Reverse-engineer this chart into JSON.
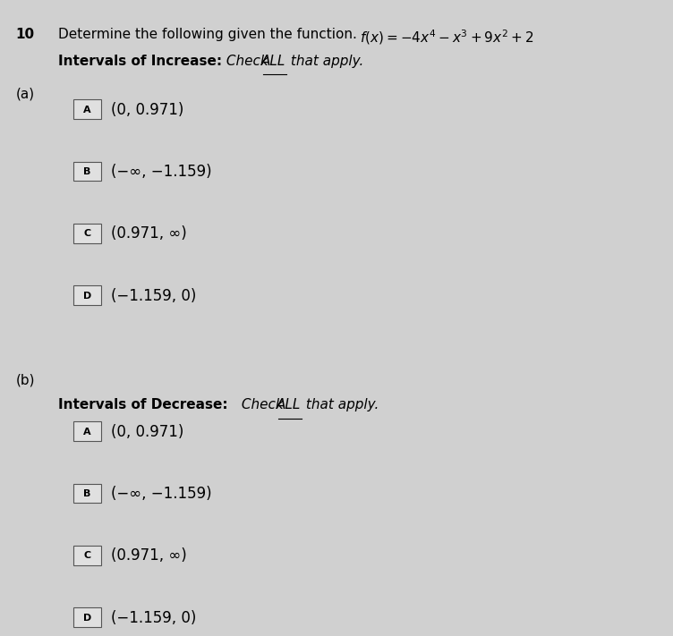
{
  "problem_number": "10",
  "title_line1": "Determine the following given the function.",
  "section_a_label": "(a)",
  "section_b_label": "(b)",
  "options_increase": [
    {
      "letter": "A",
      "text": "(0, 0.971)"
    },
    {
      "letter": "B",
      "text": "(−∞, −1.159)"
    },
    {
      "letter": "C",
      "text": "(0.971, ∞)"
    },
    {
      "letter": "D",
      "text": "(−1.159, 0)"
    }
  ],
  "options_decrease": [
    {
      "letter": "A",
      "text": "(0, 0.971)"
    },
    {
      "letter": "B",
      "text": "(−∞, −1.159)"
    },
    {
      "letter": "C",
      "text": "(0.971, ∞)"
    },
    {
      "letter": "D",
      "text": "(−1.159, 0)"
    }
  ],
  "bg_color": "#d0d0d0",
  "text_color": "#000000",
  "font_size_main": 11,
  "font_size_options": 12
}
